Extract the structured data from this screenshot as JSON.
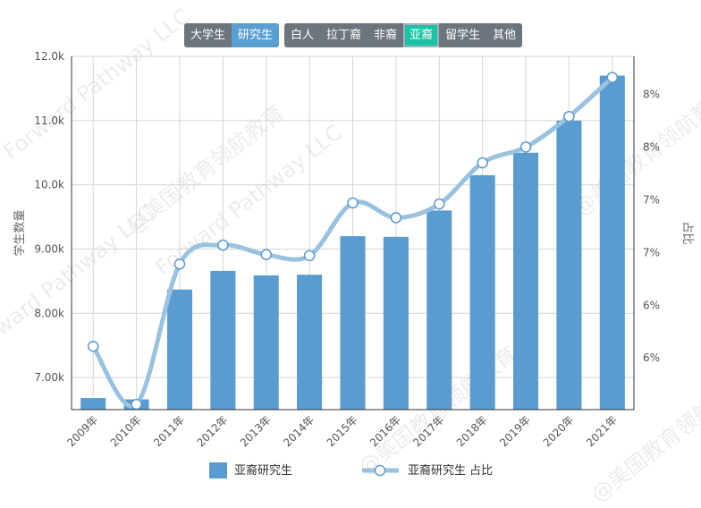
{
  "filters": {
    "level": [
      {
        "label": "大学生",
        "active": false
      },
      {
        "label": "研究生",
        "active": true
      }
    ],
    "race": [
      {
        "label": "白人",
        "active": false
      },
      {
        "label": "拉丁裔",
        "active": false
      },
      {
        "label": "非裔",
        "active": false
      },
      {
        "label": "亚裔",
        "active": true
      },
      {
        "label": "留学生",
        "active": false
      },
      {
        "label": "其他",
        "active": false
      }
    ]
  },
  "watermark": {
    "text_cn": "@美国教育领航教育",
    "text_en": "Forward Pathway LLC"
  },
  "chart_data": {
    "type": "bar+line",
    "categories": [
      "2009年",
      "2010年",
      "2011年",
      "2012年",
      "2013年",
      "2014年",
      "2015年",
      "2016年",
      "2017年",
      "2018年",
      "2019年",
      "2020年",
      "2021年"
    ],
    "series": [
      {
        "name": "亚裔研究生",
        "type": "bar",
        "axis": "left",
        "color": "#5a9bd0",
        "values": [
          6680,
          6660,
          8370,
          8660,
          8590,
          8600,
          9200,
          9190,
          9600,
          10150,
          10500,
          11000,
          11700
        ]
      },
      {
        "name": "亚裔研究生 占比",
        "type": "line",
        "axis": "right",
        "color": "#98c2e0",
        "values": [
          6.1,
          5.55,
          6.88,
          7.06,
          6.97,
          6.96,
          7.46,
          7.32,
          7.45,
          7.84,
          7.99,
          8.28,
          8.65
        ]
      }
    ],
    "ylabel": "学生数量",
    "ylabel_right": "占比",
    "ylim": [
      6500,
      12000
    ],
    "y_ticks": [
      7000,
      8000,
      9000,
      10000,
      11000,
      12000
    ],
    "y_tick_labels": [
      "7.00k",
      "8.00k",
      "9.00k",
      "10.0k",
      "11.0k",
      "12.0k"
    ],
    "y_right_lim": [
      5.5,
      8.85
    ],
    "y_right_ticks": [
      5.99,
      6.49,
      6.99,
      7.49,
      7.99,
      8.49
    ],
    "y_right_tick_labels": [
      "6%",
      "6%",
      "7%",
      "7%",
      "8%",
      "8%"
    ],
    "grid": true,
    "legend_position": "bottom-center",
    "legend": [
      {
        "label": "亚裔研究生",
        "kind": "bar"
      },
      {
        "label": "亚裔研究生 占比",
        "kind": "line"
      }
    ]
  }
}
